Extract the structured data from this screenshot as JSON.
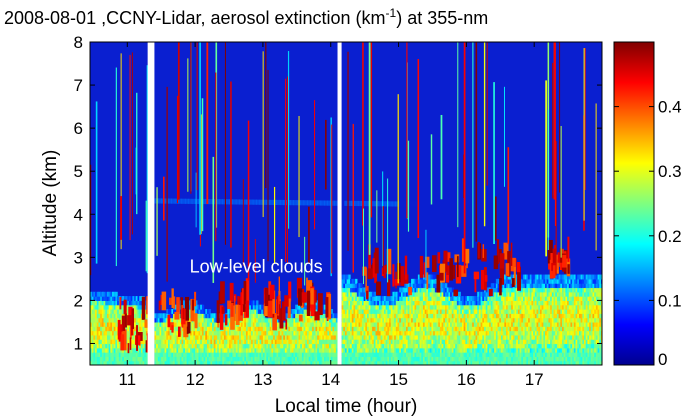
{
  "chart_data": {
    "type": "heatmap",
    "title_prefix": "2008-08-01 ,CCNY-Lidar, aerosol extinction (km",
    "title_sup": "-1",
    "title_suffix": ") at 355-nm",
    "xlabel": "Local time (hour)",
    "ylabel": "Altitude (km)",
    "xlim": [
      10.45,
      18.0
    ],
    "ylim": [
      0.5,
      8
    ],
    "xticks": [
      11,
      12,
      13,
      14,
      15,
      16,
      17
    ],
    "yticks": [
      1,
      2,
      3,
      4,
      5,
      6,
      7,
      8
    ],
    "colorbar": {
      "min": 0,
      "max": 0.5,
      "ticks": [
        0,
        0.1,
        0.2,
        0.3,
        0.4
      ],
      "colormap": "jet"
    },
    "data_gaps_hours": [
      [
        11.3,
        11.4
      ],
      [
        14.1,
        14.16
      ]
    ],
    "annotations": [
      {
        "text": "Low-level clouds",
        "x": 12.9,
        "y": 2.65
      }
    ]
  }
}
